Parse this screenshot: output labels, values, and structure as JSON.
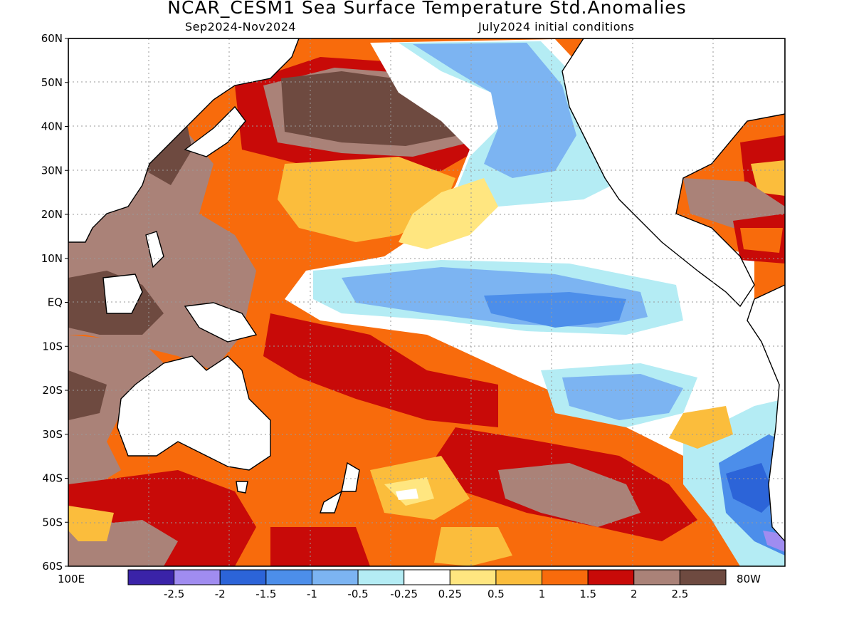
{
  "title": "NCAR_CESM1 Sea Surface Temperature Std.Anomalies",
  "subtitle_left": "Sep2024-Nov2024",
  "subtitle_right": "July2024 initial conditions",
  "lat_labels": [
    "60N",
    "50N",
    "40N",
    "30N",
    "20N",
    "10N",
    "EQ",
    "10S",
    "20S",
    "30S",
    "40S",
    "50S",
    "60S"
  ],
  "lon_left": "100E",
  "lon_right": "80W",
  "colorbar": {
    "colors": [
      "#3a23a8",
      "#a08cf0",
      "#2c64d8",
      "#4c8eea",
      "#7cb4f2",
      "#b4ecf4",
      "#ffffff",
      "#ffe680",
      "#fbbd3c",
      "#f86b0c",
      "#c80a08",
      "#aa8278",
      "#6e4a40"
    ],
    "labels": [
      "-2.5",
      "-2",
      "-1.5",
      "-1",
      "-0.5",
      "-0.25",
      "0.25",
      "0.5",
      "1",
      "1.5",
      "2",
      "2.5"
    ]
  },
  "palette": {
    "land": "#ffffff",
    "coast": "#000000",
    "grid": "#9a9a9a",
    "brown": "#6e4a40",
    "mauve": "#aa8278",
    "red": "#c80a08",
    "orange": "#f86b0c",
    "lorange": "#fbbd3c",
    "yellow": "#ffe680",
    "white": "#ffffff",
    "cyan": "#b4ecf4",
    "lblue": "#7cb4f2",
    "mblue": "#4c8eea",
    "dblue": "#2c64d8",
    "purple": "#a08cf0"
  }
}
